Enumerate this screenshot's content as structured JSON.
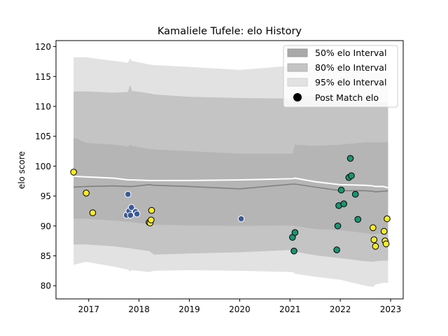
{
  "chart_data": {
    "type": "scatter",
    "title": "Kamaliele Tufele: elo History",
    "xlabel": "",
    "ylabel": "elo score",
    "xlim": [
      2016.35,
      2023.25
    ],
    "ylim": [
      77.8,
      121.0
    ],
    "x_ticks": [
      2017,
      2018,
      2019,
      2020,
      2021,
      2022,
      2023
    ],
    "x_tick_labels": [
      "2017",
      "2018",
      "2019",
      "2020",
      "2021",
      "2022",
      "2023"
    ],
    "y_ticks": [
      80,
      85,
      90,
      95,
      100,
      105,
      110,
      115,
      120
    ],
    "y_tick_labels": [
      "80",
      "85",
      "90",
      "95",
      "100",
      "105",
      "110",
      "115",
      "120"
    ],
    "legend": {
      "position": "top-right",
      "entries": [
        "50% elo Interval",
        "80% elo Interval",
        "95% elo Interval",
        "Post Match elo"
      ]
    },
    "colors": {
      "band50": "#a9a9a9",
      "band80": "#c4c4c4",
      "band95": "#e2e2e2",
      "median": "#808080",
      "mean": "#ffffff",
      "yellow": "#f5ec27",
      "blue": "#3b5998",
      "green": "#1e9272"
    },
    "bands": {
      "x": [
        2016.7,
        2016.95,
        2017.5,
        2017.78,
        2017.82,
        2017.86,
        2018.2,
        2018.3,
        2019.0,
        2020.0,
        2021.05,
        2021.1,
        2021.5,
        2022.0,
        2022.5,
        2022.65,
        2022.7,
        2022.85,
        2022.95
      ],
      "lo95": [
        83.5,
        84.0,
        83.2,
        82.7,
        82.4,
        82.6,
        82.3,
        82.5,
        82.6,
        82.5,
        82.3,
        82.0,
        81.5,
        81.0,
        80.0,
        79.8,
        80.2,
        80.5,
        80.5
      ],
      "hi95": [
        118.2,
        118.2,
        117.6,
        117.3,
        118.0,
        117.6,
        117.0,
        116.9,
        116.6,
        116.1,
        116.8,
        117.2,
        116.6,
        116.2,
        115.7,
        115.6,
        115.6,
        115.6,
        115.6
      ],
      "lo80": [
        86.9,
        86.9,
        86.6,
        86.3,
        86.3,
        86.2,
        85.8,
        85.2,
        85.4,
        85.6,
        86.0,
        85.7,
        85.1,
        84.6,
        84.1,
        84.0,
        84.1,
        84.2,
        84.2
      ],
      "hi80": [
        112.5,
        112.5,
        112.3,
        112.4,
        113.6,
        112.6,
        112.2,
        112.0,
        111.6,
        111.4,
        111.3,
        111.8,
        111.6,
        111.2,
        110.8,
        110.7,
        110.7,
        110.7,
        110.7
      ],
      "lo50": [
        91.2,
        91.2,
        90.9,
        90.7,
        90.7,
        90.6,
        90.3,
        90.2,
        90.1,
        90.0,
        90.1,
        90.0,
        89.5,
        89.3,
        88.8,
        88.6,
        88.6,
        88.9,
        89.2
      ],
      "hi50": [
        104.8,
        103.9,
        103.6,
        103.3,
        103.6,
        103.4,
        102.9,
        102.8,
        102.5,
        102.1,
        102.1,
        103.6,
        103.4,
        103.6,
        104.0,
        104.0,
        104.0,
        104.0,
        104.0
      ],
      "median": [
        96.5,
        96.6,
        96.7,
        96.6,
        96.6,
        96.6,
        96.9,
        96.8,
        96.6,
        96.2,
        97.0,
        97.0,
        96.5,
        95.9,
        95.9,
        95.8,
        95.7,
        95.8,
        95.9
      ],
      "mean": [
        98.3,
        98.2,
        98.0,
        97.7,
        97.7,
        97.7,
        97.6,
        97.6,
        97.6,
        97.7,
        97.9,
        98.0,
        97.4,
        96.9,
        96.8,
        96.7,
        96.6,
        96.6,
        96.4
      ]
    },
    "points": [
      {
        "x": 2016.7,
        "y": 99.0,
        "c": "yellow"
      },
      {
        "x": 2016.95,
        "y": 95.5,
        "c": "yellow"
      },
      {
        "x": 2017.08,
        "y": 92.2,
        "c": "yellow"
      },
      {
        "x": 2017.75,
        "y": 91.8,
        "c": "blue"
      },
      {
        "x": 2017.78,
        "y": 95.3,
        "c": "blue"
      },
      {
        "x": 2017.8,
        "y": 92.5,
        "c": "blue"
      },
      {
        "x": 2017.83,
        "y": 91.8,
        "c": "blue"
      },
      {
        "x": 2017.85,
        "y": 93.1,
        "c": "blue"
      },
      {
        "x": 2017.93,
        "y": 92.4,
        "c": "blue"
      },
      {
        "x": 2017.96,
        "y": 92.0,
        "c": "blue"
      },
      {
        "x": 2018.2,
        "y": 90.6,
        "c": "yellow"
      },
      {
        "x": 2018.22,
        "y": 90.5,
        "c": "yellow"
      },
      {
        "x": 2018.24,
        "y": 91.0,
        "c": "yellow"
      },
      {
        "x": 2018.25,
        "y": 92.6,
        "c": "yellow"
      },
      {
        "x": 2020.03,
        "y": 91.2,
        "c": "blue"
      },
      {
        "x": 2021.05,
        "y": 88.1,
        "c": "green"
      },
      {
        "x": 2021.08,
        "y": 85.8,
        "c": "green"
      },
      {
        "x": 2021.1,
        "y": 88.9,
        "c": "green"
      },
      {
        "x": 2021.93,
        "y": 86.0,
        "c": "green"
      },
      {
        "x": 2021.95,
        "y": 90.0,
        "c": "green"
      },
      {
        "x": 2021.97,
        "y": 93.4,
        "c": "green"
      },
      {
        "x": 2022.02,
        "y": 96.0,
        "c": "green"
      },
      {
        "x": 2022.07,
        "y": 93.7,
        "c": "green"
      },
      {
        "x": 2022.17,
        "y": 98.1,
        "c": "green"
      },
      {
        "x": 2022.2,
        "y": 101.3,
        "c": "green"
      },
      {
        "x": 2022.22,
        "y": 98.4,
        "c": "green"
      },
      {
        "x": 2022.3,
        "y": 95.3,
        "c": "green"
      },
      {
        "x": 2022.35,
        "y": 91.1,
        "c": "green"
      },
      {
        "x": 2022.65,
        "y": 89.7,
        "c": "yellow"
      },
      {
        "x": 2022.67,
        "y": 87.7,
        "c": "yellow"
      },
      {
        "x": 2022.7,
        "y": 86.6,
        "c": "yellow"
      },
      {
        "x": 2022.87,
        "y": 89.1,
        "c": "yellow"
      },
      {
        "x": 2022.89,
        "y": 87.5,
        "c": "yellow"
      },
      {
        "x": 2022.91,
        "y": 87.0,
        "c": "yellow"
      },
      {
        "x": 2022.93,
        "y": 91.2,
        "c": "yellow"
      }
    ]
  }
}
